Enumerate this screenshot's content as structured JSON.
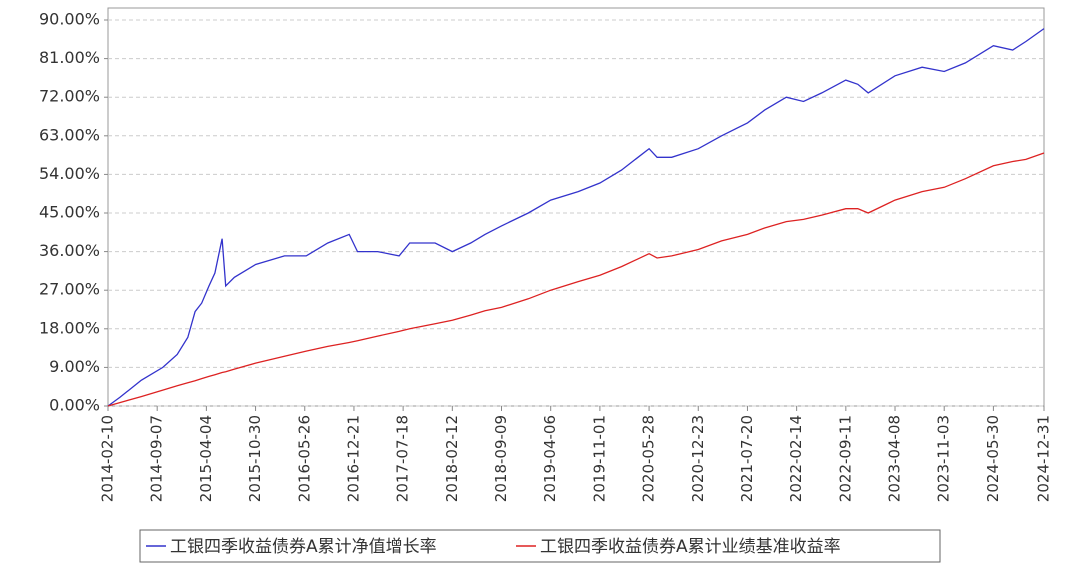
{
  "chart_data": {
    "type": "line",
    "x": [
      "2014-02-10",
      "2014-04-01",
      "2014-07-01",
      "2014-10-01",
      "2014-12-01",
      "2015-01-15",
      "2015-02-15",
      "2015-03-15",
      "2015-04-15",
      "2015-05-10",
      "2015-06-10",
      "2015-06-25",
      "2015-08-01",
      "2015-10-30",
      "2016-03-01",
      "2016-06-01",
      "2016-09-01",
      "2016-12-01",
      "2017-01-05",
      "2017-04-01",
      "2017-07-01",
      "2017-08-15",
      "2017-12-01",
      "2018-02-12",
      "2018-05-01",
      "2018-07-01",
      "2018-09-09",
      "2019-01-01",
      "2019-04-06",
      "2019-08-01",
      "2019-11-01",
      "2020-02-01",
      "2020-05-28",
      "2020-07-01",
      "2020-09-01",
      "2020-12-23",
      "2021-04-01",
      "2021-07-20",
      "2021-10-01",
      "2022-01-01",
      "2022-03-15",
      "2022-06-01",
      "2022-09-11",
      "2022-11-01",
      "2022-12-15",
      "2023-04-08",
      "2023-08-01",
      "2023-11-03",
      "2024-02-01",
      "2024-05-30",
      "2024-08-20",
      "2024-10-15",
      "2024-12-31"
    ],
    "series": [
      {
        "name": "工银四季收益债券A累计净值增长率",
        "color": "#3333cc",
        "values": [
          0,
          2,
          6,
          9,
          12,
          16,
          22,
          24,
          28,
          31,
          39,
          28,
          30,
          33,
          35,
          35,
          38,
          40,
          36,
          36,
          35,
          38,
          38,
          36,
          38,
          40,
          42,
          45,
          48,
          50,
          52,
          55,
          60,
          58,
          58,
          60,
          63,
          66,
          69,
          72,
          71,
          73,
          76,
          75,
          73,
          77,
          79,
          78,
          80,
          84,
          83,
          85,
          88
        ]
      },
      {
        "name": "工银四季收益债券A累计业绩基准收益率",
        "color": "#dd2222",
        "values": [
          0,
          0.8,
          2.2,
          3.7,
          4.7,
          5.4,
          5.9,
          6.4,
          6.9,
          7.3,
          7.8,
          8.0,
          8.6,
          10,
          11.6,
          12.8,
          13.9,
          14.8,
          15.2,
          16.3,
          17.4,
          18,
          19.2,
          20,
          21.2,
          22.2,
          23,
          25,
          27,
          29,
          30.5,
          32.5,
          35.5,
          34.5,
          35,
          36.5,
          38.5,
          40,
          41.5,
          43,
          43.5,
          44.5,
          46,
          46,
          45,
          48,
          50,
          51,
          53,
          56,
          57,
          57.5,
          59
        ]
      }
    ],
    "xlim": [
      "2014-02-10",
      "2024-12-31"
    ],
    "xticks": [
      "2014-02-10",
      "2014-09-07",
      "2015-04-04",
      "2015-10-30",
      "2016-05-26",
      "2016-12-21",
      "2017-07-18",
      "2018-02-12",
      "2018-09-09",
      "2019-04-06",
      "2019-11-01",
      "2020-05-28",
      "2020-12-23",
      "2021-07-20",
      "2022-02-14",
      "2022-09-11",
      "2023-04-08",
      "2023-11-03",
      "2024-05-30",
      "2024-12-31"
    ],
    "ylim": [
      0,
      92.8
    ],
    "yticks": [
      {
        "value": 0,
        "label": "0.00%"
      },
      {
        "value": 9,
        "label": "9.00%"
      },
      {
        "value": 18,
        "label": "18.00%"
      },
      {
        "value": 27,
        "label": "27.00%"
      },
      {
        "value": 36,
        "label": "36.00%"
      },
      {
        "value": 45,
        "label": "45.00%"
      },
      {
        "value": 54,
        "label": "54.00%"
      },
      {
        "value": 63,
        "label": "63.00%"
      },
      {
        "value": 72,
        "label": "72.00%"
      },
      {
        "value": 81,
        "label": "81.00%"
      },
      {
        "value": 90,
        "label": "90.00%"
      }
    ],
    "grid": true
  }
}
